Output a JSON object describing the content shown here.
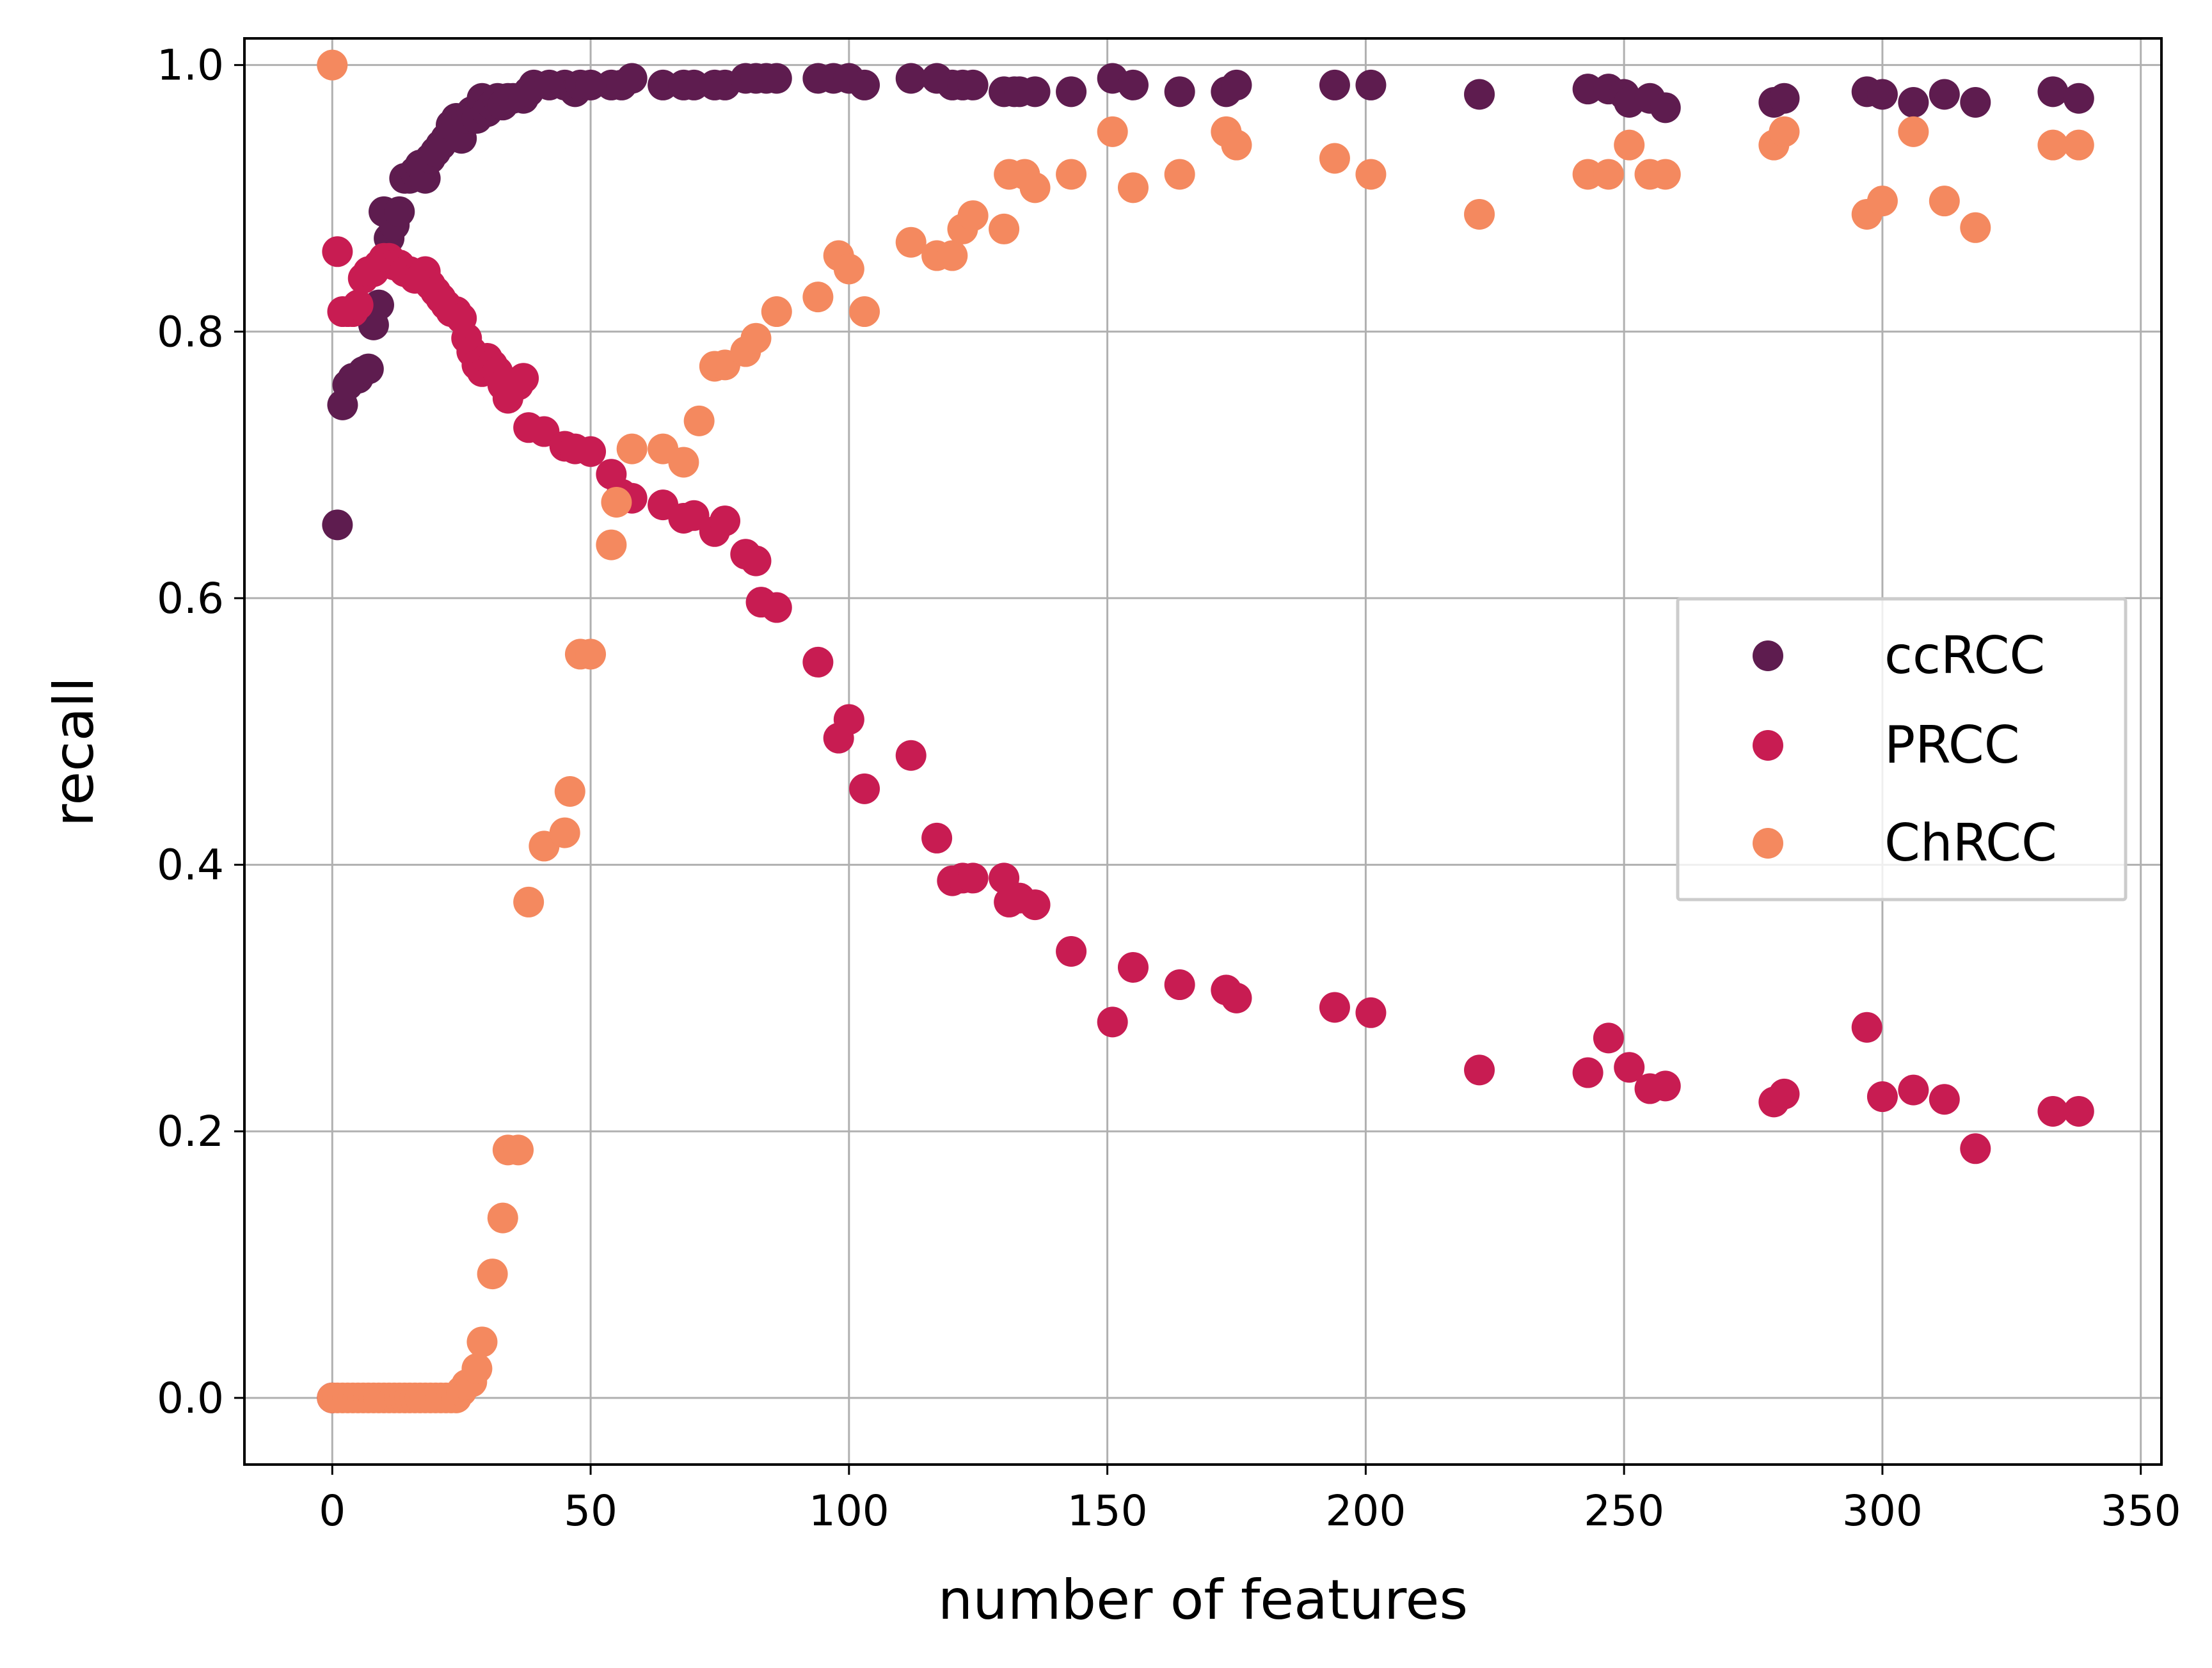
{
  "chart_data": {
    "type": "scatter",
    "title": "",
    "xlabel": "number of features",
    "ylabel": "recall",
    "xlim": [
      -17,
      354
    ],
    "ylim": [
      -0.05,
      1.02
    ],
    "xticks": [
      0,
      50,
      100,
      150,
      200,
      250,
      300,
      350
    ],
    "yticks": [
      0.0,
      0.2,
      0.4,
      0.6,
      0.8,
      1.0
    ],
    "xtick_labels": [
      "0",
      "50",
      "100",
      "150",
      "200",
      "250",
      "300",
      "350"
    ],
    "ytick_labels": [
      "0.0",
      "0.2",
      "0.4",
      "0.6",
      "0.8",
      "1.0"
    ],
    "grid": true,
    "legend_position": "center-right",
    "series": [
      {
        "name": "ccRCC",
        "color": "#5e1c4f",
        "points": [
          [
            0,
            0
          ],
          [
            1,
            0.655
          ],
          [
            2,
            0.745
          ],
          [
            3,
            0.76
          ],
          [
            4,
            0.765
          ],
          [
            5,
            0.765
          ],
          [
            6,
            0.77
          ],
          [
            7,
            0.772
          ],
          [
            8,
            0.805
          ],
          [
            9,
            0.82
          ],
          [
            10,
            0.89
          ],
          [
            11,
            0.87
          ],
          [
            12,
            0.88
          ],
          [
            13,
            0.89
          ],
          [
            14,
            0.915
          ],
          [
            15,
            0.915
          ],
          [
            16,
            0.92
          ],
          [
            17,
            0.925
          ],
          [
            18,
            0.915
          ],
          [
            19,
            0.93
          ],
          [
            20,
            0.935
          ],
          [
            21,
            0.94
          ],
          [
            22,
            0.945
          ],
          [
            23,
            0.955
          ],
          [
            24,
            0.96
          ],
          [
            25,
            0.945
          ],
          [
            26,
            0.96
          ],
          [
            27,
            0.965
          ],
          [
            28,
            0.96
          ],
          [
            29,
            0.975
          ],
          [
            30,
            0.965
          ],
          [
            31,
            0.97
          ],
          [
            32,
            0.975
          ],
          [
            33,
            0.97
          ],
          [
            34,
            0.975
          ],
          [
            35,
            0.975
          ],
          [
            37,
            0.975
          ],
          [
            38,
            0.98
          ],
          [
            39,
            0.985
          ],
          [
            42,
            0.985
          ],
          [
            45,
            0.985
          ],
          [
            47,
            0.98
          ],
          [
            48,
            0.985
          ],
          [
            50,
            0.985
          ],
          [
            54,
            0.985
          ],
          [
            56,
            0.985
          ],
          [
            58,
            0.99
          ],
          [
            64,
            0.985
          ],
          [
            68,
            0.985
          ],
          [
            70,
            0.985
          ],
          [
            74,
            0.985
          ],
          [
            76,
            0.985
          ],
          [
            80,
            0.99
          ],
          [
            82,
            0.99
          ],
          [
            84,
            0.99
          ],
          [
            86,
            0.99
          ],
          [
            94,
            0.99
          ],
          [
            97,
            0.99
          ],
          [
            100,
            0.99
          ],
          [
            103,
            0.985
          ],
          [
            112,
            0.99
          ],
          [
            117,
            0.99
          ],
          [
            120,
            0.985
          ],
          [
            122,
            0.985
          ],
          [
            124,
            0.985
          ],
          [
            130,
            0.98
          ],
          [
            132,
            0.98
          ],
          [
            133,
            0.98
          ],
          [
            136,
            0.98
          ],
          [
            143,
            0.98
          ],
          [
            151,
            0.99
          ],
          [
            155,
            0.985
          ],
          [
            164,
            0.98
          ],
          [
            173,
            0.98
          ],
          [
            175,
            0.985
          ],
          [
            194,
            0.985
          ],
          [
            201,
            0.985
          ],
          [
            222,
            0.978
          ],
          [
            243,
            0.982
          ],
          [
            247,
            0.982
          ],
          [
            250,
            0.978
          ],
          [
            251,
            0.972
          ],
          [
            255,
            0.975
          ],
          [
            258,
            0.968
          ],
          [
            279,
            0.972
          ],
          [
            281,
            0.975
          ],
          [
            297,
            0.98
          ],
          [
            300,
            0.978
          ],
          [
            306,
            0.972
          ],
          [
            312,
            0.978
          ],
          [
            318,
            0.972
          ],
          [
            333,
            0.98
          ],
          [
            338,
            0.975
          ]
        ]
      },
      {
        "name": "PRCC",
        "color": "#c81c52",
        "points": [
          [
            0,
            0
          ],
          [
            1,
            0.86
          ],
          [
            2,
            0.815
          ],
          [
            3,
            0.815
          ],
          [
            4,
            0.815
          ],
          [
            5,
            0.82
          ],
          [
            6,
            0.84
          ],
          [
            7,
            0.845
          ],
          [
            8,
            0.845
          ],
          [
            9,
            0.85
          ],
          [
            10,
            0.855
          ],
          [
            11,
            0.855
          ],
          [
            12,
            0.85
          ],
          [
            13,
            0.85
          ],
          [
            14,
            0.845
          ],
          [
            15,
            0.845
          ],
          [
            16,
            0.84
          ],
          [
            17,
            0.84
          ],
          [
            18,
            0.845
          ],
          [
            19,
            0.835
          ],
          [
            20,
            0.83
          ],
          [
            21,
            0.825
          ],
          [
            22,
            0.82
          ],
          [
            23,
            0.815
          ],
          [
            24,
            0.815
          ],
          [
            25,
            0.81
          ],
          [
            26,
            0.795
          ],
          [
            27,
            0.785
          ],
          [
            28,
            0.775
          ],
          [
            29,
            0.77
          ],
          [
            30,
            0.78
          ],
          [
            31,
            0.775
          ],
          [
            32,
            0.77
          ],
          [
            33,
            0.76
          ],
          [
            34,
            0.75
          ],
          [
            36,
            0.76
          ],
          [
            37,
            0.765
          ],
          [
            38,
            0.728
          ],
          [
            41,
            0.725
          ],
          [
            45,
            0.714
          ],
          [
            47,
            0.712
          ],
          [
            50,
            0.71
          ],
          [
            54,
            0.693
          ],
          [
            56,
            0.678
          ],
          [
            58,
            0.675
          ],
          [
            64,
            0.67
          ],
          [
            68,
            0.66
          ],
          [
            70,
            0.662
          ],
          [
            74,
            0.65
          ],
          [
            76,
            0.658
          ],
          [
            80,
            0.633
          ],
          [
            82,
            0.628
          ],
          [
            83,
            0.597
          ],
          [
            86,
            0.593
          ],
          [
            94,
            0.552
          ],
          [
            98,
            0.495
          ],
          [
            100,
            0.509
          ],
          [
            103,
            0.457
          ],
          [
            112,
            0.482
          ],
          [
            117,
            0.42
          ],
          [
            120,
            0.388
          ],
          [
            122,
            0.39
          ],
          [
            124,
            0.39
          ],
          [
            130,
            0.39
          ],
          [
            131,
            0.372
          ],
          [
            133,
            0.375
          ],
          [
            136,
            0.37
          ],
          [
            143,
            0.335
          ],
          [
            151,
            0.282
          ],
          [
            155,
            0.323
          ],
          [
            164,
            0.31
          ],
          [
            173,
            0.306
          ],
          [
            175,
            0.3
          ],
          [
            194,
            0.293
          ],
          [
            201,
            0.289
          ],
          [
            222,
            0.246
          ],
          [
            243,
            0.244
          ],
          [
            247,
            0.27
          ],
          [
            251,
            0.248
          ],
          [
            255,
            0.232
          ],
          [
            258,
            0.234
          ],
          [
            279,
            0.222
          ],
          [
            281,
            0.228
          ],
          [
            297,
            0.278
          ],
          [
            300,
            0.226
          ],
          [
            306,
            0.231
          ],
          [
            312,
            0.224
          ],
          [
            318,
            0.187
          ],
          [
            333,
            0.215
          ],
          [
            338,
            0.215
          ]
        ]
      },
      {
        "name": "ChRCC",
        "color": "#f4895f",
        "points": [
          [
            0,
            1.0
          ],
          [
            0,
            0
          ],
          [
            1,
            0
          ],
          [
            2,
            0
          ],
          [
            3,
            0
          ],
          [
            4,
            0
          ],
          [
            5,
            0
          ],
          [
            6,
            0
          ],
          [
            7,
            0
          ],
          [
            8,
            0
          ],
          [
            9,
            0
          ],
          [
            10,
            0
          ],
          [
            11,
            0
          ],
          [
            12,
            0
          ],
          [
            13,
            0
          ],
          [
            14,
            0
          ],
          [
            15,
            0
          ],
          [
            16,
            0
          ],
          [
            17,
            0
          ],
          [
            18,
            0
          ],
          [
            19,
            0
          ],
          [
            20,
            0
          ],
          [
            21,
            0
          ],
          [
            22,
            0
          ],
          [
            23,
            0
          ],
          [
            24,
            0
          ],
          [
            25,
            0.005
          ],
          [
            26,
            0.01
          ],
          [
            27,
            0.012
          ],
          [
            28,
            0.022
          ],
          [
            29,
            0.042
          ],
          [
            31,
            0.093
          ],
          [
            33,
            0.135
          ],
          [
            34,
            0.186
          ],
          [
            36,
            0.186
          ],
          [
            38,
            0.372
          ],
          [
            41,
            0.414
          ],
          [
            45,
            0.424
          ],
          [
            46,
            0.455
          ],
          [
            48,
            0.558
          ],
          [
            50,
            0.558
          ],
          [
            54,
            0.64
          ],
          [
            55,
            0.672
          ],
          [
            58,
            0.712
          ],
          [
            64,
            0.712
          ],
          [
            68,
            0.702
          ],
          [
            71,
            0.733
          ],
          [
            74,
            0.774
          ],
          [
            76,
            0.775
          ],
          [
            80,
            0.785
          ],
          [
            82,
            0.795
          ],
          [
            86,
            0.815
          ],
          [
            94,
            0.826
          ],
          [
            98,
            0.857
          ],
          [
            100,
            0.847
          ],
          [
            103,
            0.815
          ],
          [
            112,
            0.867
          ],
          [
            117,
            0.857
          ],
          [
            120,
            0.857
          ],
          [
            122,
            0.877
          ],
          [
            124,
            0.887
          ],
          [
            130,
            0.877
          ],
          [
            131,
            0.918
          ],
          [
            134,
            0.918
          ],
          [
            136,
            0.908
          ],
          [
            143,
            0.918
          ],
          [
            151,
            0.95
          ],
          [
            155,
            0.908
          ],
          [
            164,
            0.918
          ],
          [
            173,
            0.95
          ],
          [
            175,
            0.94
          ],
          [
            194,
            0.93
          ],
          [
            201,
            0.918
          ],
          [
            222,
            0.888
          ],
          [
            243,
            0.918
          ],
          [
            247,
            0.918
          ],
          [
            251,
            0.94
          ],
          [
            255,
            0.918
          ],
          [
            258,
            0.918
          ],
          [
            279,
            0.94
          ],
          [
            281,
            0.95
          ],
          [
            297,
            0.888
          ],
          [
            300,
            0.898
          ],
          [
            306,
            0.95
          ],
          [
            312,
            0.898
          ],
          [
            318,
            0.878
          ],
          [
            333,
            0.94
          ],
          [
            338,
            0.94
          ]
        ]
      }
    ]
  }
}
